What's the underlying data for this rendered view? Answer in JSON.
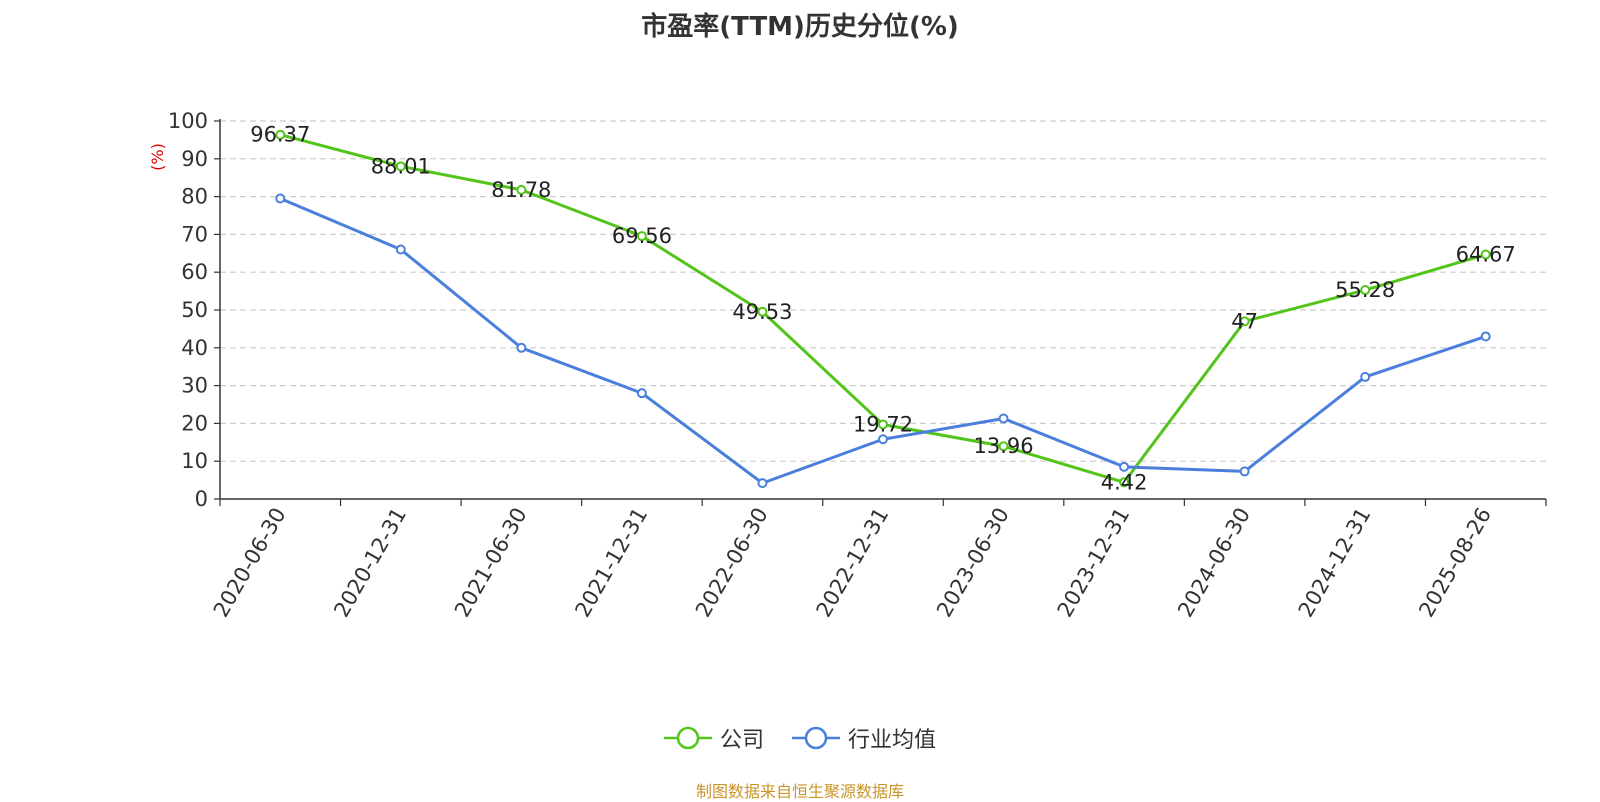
{
  "chart_data": {
    "type": "line",
    "title": "市盈率(TTM)历史分位(%)",
    "ylabel": "(%)",
    "ylim": [
      0,
      100
    ],
    "yticks": [
      0,
      10,
      20,
      30,
      40,
      50,
      60,
      70,
      80,
      90,
      100
    ],
    "grid": true,
    "legend_position": "bottom-center",
    "categories": [
      "2020-06-30",
      "2020-12-31",
      "2021-06-30",
      "2021-12-31",
      "2022-06-30",
      "2022-12-31",
      "2023-06-30",
      "2023-12-31",
      "2024-06-30",
      "2024-12-31",
      "2025-08-26"
    ],
    "series": [
      {
        "name": "公司",
        "color": "#52c41a",
        "values": [
          96.37,
          88.01,
          81.78,
          69.56,
          49.53,
          19.72,
          13.96,
          4.42,
          47,
          55.28,
          64.67
        ],
        "labels": [
          "96.37",
          "88.01",
          "81.78",
          "69.56",
          "49.53",
          "19.72",
          "13.96",
          "4.42",
          "47",
          "55.28",
          "64.67"
        ]
      },
      {
        "name": "行业均值",
        "color": "#4a7fdb",
        "values": [
          79.5,
          66,
          40,
          28,
          4.2,
          15.8,
          21.3,
          8.5,
          7.3,
          32.3,
          43
        ]
      }
    ]
  },
  "source_text": "制图数据来自恒生聚源数据库"
}
